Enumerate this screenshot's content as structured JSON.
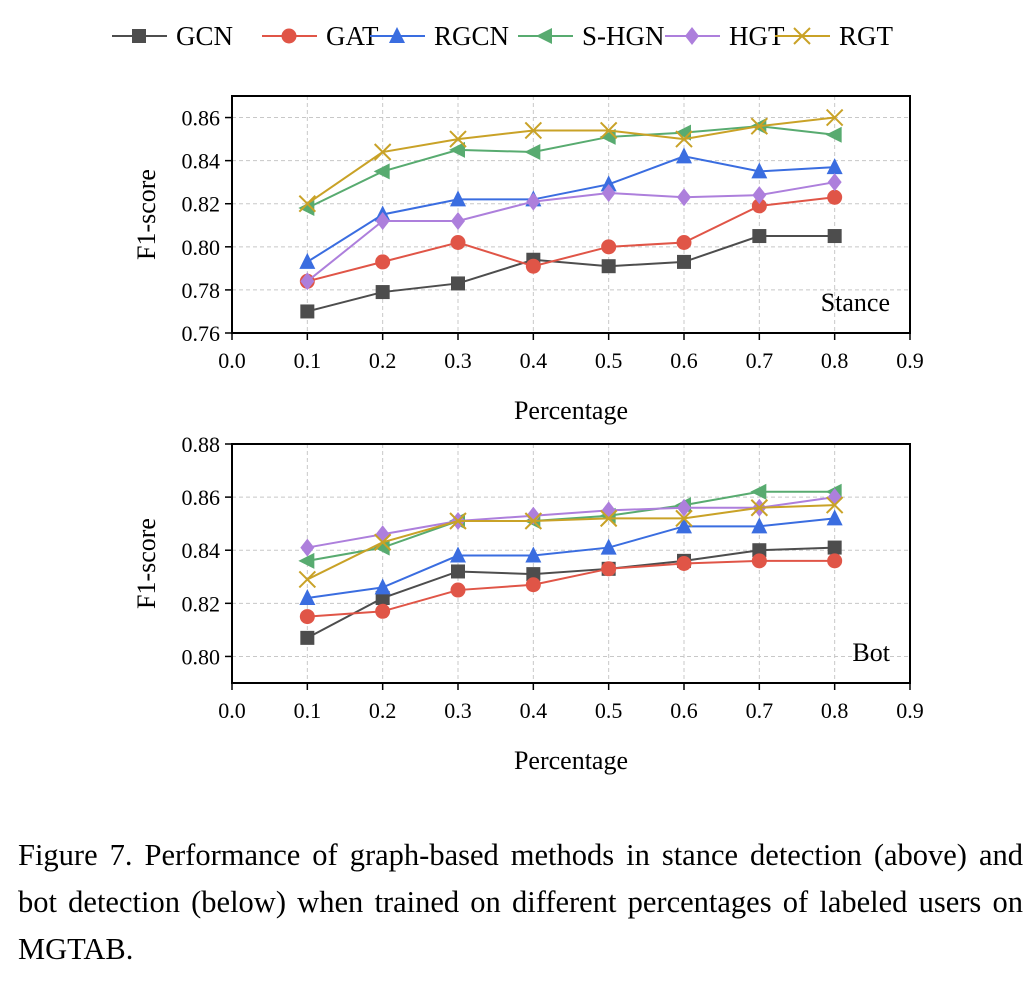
{
  "colors": {
    "GCN": "#4d4d4d",
    "GAT": "#e05547",
    "RGCN": "#3a6de0",
    "S-HGN": "#58ab70",
    "HGT": "#ad7fdc",
    "RGT": "#c9a227"
  },
  "markers": {
    "GCN": "square",
    "GAT": "circle",
    "RGCN": "triangle-up",
    "S-HGN": "triangle-left",
    "HGT": "diamond",
    "RGT": "x"
  },
  "legend": {
    "position": "top-center",
    "items": [
      "GCN",
      "GAT",
      "RGCN",
      "S-HGN",
      "HGT",
      "RGT"
    ]
  },
  "chart_data": [
    {
      "type": "line",
      "annotation": "Stance",
      "xlabel": "Percentage",
      "ylabel": "F1-score",
      "xlim": [
        0.0,
        0.9
      ],
      "ylim": [
        0.76,
        0.87
      ],
      "xticks": [
        "0.0",
        "0.1",
        "0.2",
        "0.3",
        "0.4",
        "0.5",
        "0.6",
        "0.7",
        "0.8",
        "0.9"
      ],
      "yticks": [
        "0.76",
        "0.78",
        "0.80",
        "0.82",
        "0.84",
        "0.86"
      ],
      "grid": true,
      "x": [
        0.1,
        0.2,
        0.3,
        0.4,
        0.5,
        0.6,
        0.7,
        0.8
      ],
      "series": [
        {
          "name": "GCN",
          "values": [
            0.77,
            0.779,
            0.783,
            0.794,
            0.791,
            0.793,
            0.805,
            0.805
          ]
        },
        {
          "name": "GAT",
          "values": [
            0.784,
            0.793,
            0.802,
            0.791,
            0.8,
            0.802,
            0.819,
            0.823
          ]
        },
        {
          "name": "RGCN",
          "values": [
            0.793,
            0.815,
            0.822,
            0.822,
            0.829,
            0.842,
            0.835,
            0.837
          ]
        },
        {
          "name": "S-HGN",
          "values": [
            0.818,
            0.835,
            0.845,
            0.844,
            0.851,
            0.853,
            0.856,
            0.852
          ]
        },
        {
          "name": "HGT",
          "values": [
            0.784,
            0.812,
            0.812,
            0.821,
            0.825,
            0.823,
            0.824,
            0.83
          ]
        },
        {
          "name": "RGT",
          "values": [
            0.82,
            0.844,
            0.85,
            0.854,
            0.854,
            0.85,
            0.856,
            0.86
          ]
        }
      ]
    },
    {
      "type": "line",
      "annotation": "Bot",
      "xlabel": "Percentage",
      "ylabel": "F1-score",
      "xlim": [
        0.0,
        0.9
      ],
      "ylim": [
        0.79,
        0.88
      ],
      "xticks": [
        "0.0",
        "0.1",
        "0.2",
        "0.3",
        "0.4",
        "0.5",
        "0.6",
        "0.7",
        "0.8",
        "0.9"
      ],
      "yticks": [
        "0.80",
        "0.82",
        "0.84",
        "0.86",
        "0.88"
      ],
      "grid": true,
      "x": [
        0.1,
        0.2,
        0.3,
        0.4,
        0.5,
        0.6,
        0.7,
        0.8
      ],
      "series": [
        {
          "name": "GCN",
          "values": [
            0.807,
            0.822,
            0.832,
            0.831,
            0.833,
            0.836,
            0.84,
            0.841
          ]
        },
        {
          "name": "GAT",
          "values": [
            0.815,
            0.817,
            0.825,
            0.827,
            0.833,
            0.835,
            0.836,
            0.836
          ]
        },
        {
          "name": "RGCN",
          "values": [
            0.822,
            0.826,
            0.838,
            0.838,
            0.841,
            0.849,
            0.849,
            0.852
          ]
        },
        {
          "name": "S-HGN",
          "values": [
            0.836,
            0.841,
            0.851,
            0.851,
            0.853,
            0.857,
            0.862,
            0.862
          ]
        },
        {
          "name": "HGT",
          "values": [
            0.841,
            0.846,
            0.851,
            0.853,
            0.855,
            0.856,
            0.856,
            0.86
          ]
        },
        {
          "name": "RGT",
          "values": [
            0.829,
            0.843,
            0.851,
            0.851,
            0.852,
            0.852,
            0.856,
            0.857
          ]
        }
      ]
    }
  ],
  "caption": "Figure 7.  Performance of graph-based methods in stance detection (above) and bot detection (below) when trained on different percentages of labeled users on MGTAB."
}
